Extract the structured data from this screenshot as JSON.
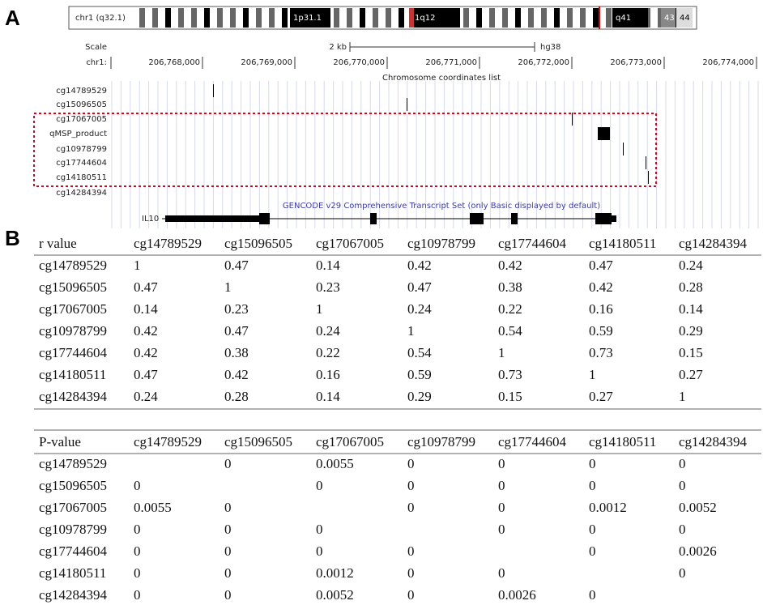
{
  "panel_a": {
    "label": "A",
    "ideogram": {
      "chromosome": "chr1 (q32.1)",
      "bands": [
        "1p31.1",
        "1q12",
        "q41",
        "43",
        "44"
      ]
    },
    "scale": {
      "label": "Scale",
      "size": "2 kb",
      "assembly": "hg38"
    },
    "position_label": "chr1:",
    "coordinates": [
      "206,768,000",
      "206,769,000",
      "206,770,000",
      "206,771,000",
      "206,772,000",
      "206,773,000",
      "206,774,000"
    ],
    "ruler_label": "Chromosome coordinates list",
    "tracks": [
      "cg14789529",
      "cg15096505",
      "cg17067005",
      "qMSP_product",
      "cg10978799",
      "cg17744604",
      "cg14180511",
      "cg14284394"
    ],
    "gene_track": {
      "title": "GENCODE v29 Comprehensive Transcript Set (only Basic displayed by default)",
      "gene": "IL10"
    }
  },
  "panel_b": {
    "label": "B",
    "r_table": {
      "header": [
        "r value",
        "cg14789529",
        "cg15096505",
        "cg17067005",
        "cg10978799",
        "cg17744604",
        "cg14180511",
        "cg14284394"
      ],
      "rows": [
        [
          "cg14789529",
          1,
          0.47,
          0.14,
          0.42,
          0.42,
          0.47,
          0.24
        ],
        [
          "cg15096505",
          0.47,
          1,
          0.23,
          0.47,
          0.38,
          0.42,
          0.28
        ],
        [
          "cg17067005",
          0.14,
          0.23,
          1,
          0.24,
          0.22,
          0.16,
          0.14
        ],
        [
          "cg10978799",
          0.42,
          0.47,
          0.24,
          1,
          0.54,
          0.59,
          0.29
        ],
        [
          "cg17744604",
          0.42,
          0.38,
          0.22,
          0.54,
          1,
          0.73,
          0.15
        ],
        [
          "cg14180511",
          0.47,
          0.42,
          0.16,
          0.59,
          0.73,
          1,
          0.27
        ],
        [
          "cg14284394",
          0.24,
          0.28,
          0.14,
          0.29,
          0.15,
          0.27,
          1
        ]
      ]
    },
    "p_table": {
      "header": [
        "P-value",
        "cg14789529",
        "cg15096505",
        "cg17067005",
        "cg10978799",
        "cg17744604",
        "cg14180511",
        "cg14284394"
      ],
      "rows": [
        [
          "cg14789529",
          null,
          0,
          0.0055,
          0,
          0,
          0,
          0
        ],
        [
          "cg15096505",
          0,
          null,
          0,
          0,
          0,
          0,
          0
        ],
        [
          "cg17067005",
          0.0055,
          0,
          null,
          0,
          0,
          0.0012,
          0.0052
        ],
        [
          "cg10978799",
          0,
          0,
          0,
          null,
          0,
          0,
          0
        ],
        [
          "cg17744604",
          0,
          0,
          0,
          0,
          null,
          0,
          0.0026
        ],
        [
          "cg14180511",
          0,
          0,
          0.0012,
          0,
          0,
          null,
          0
        ],
        [
          "cg14284394",
          0,
          0,
          0.0052,
          0,
          0.0026,
          0,
          null
        ]
      ]
    }
  }
}
